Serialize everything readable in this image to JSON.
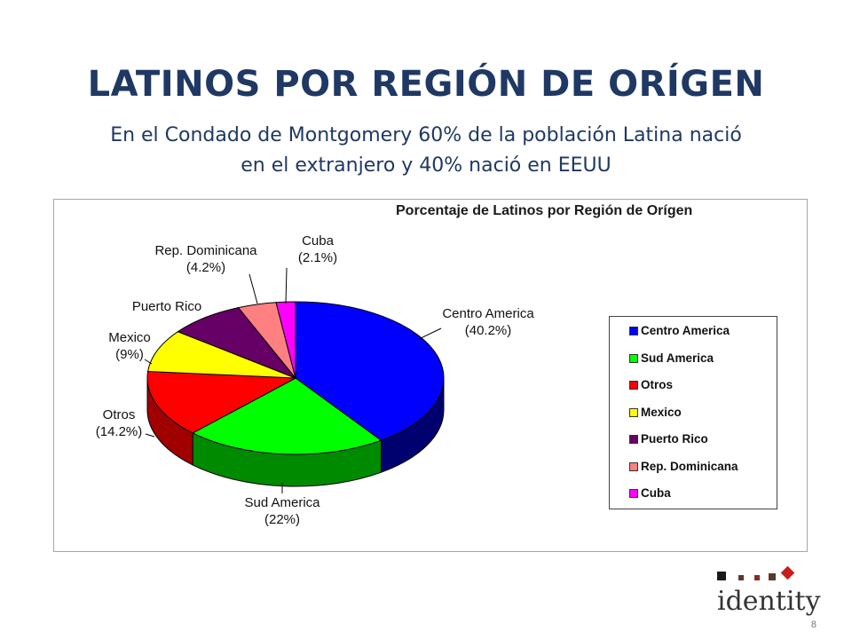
{
  "slide": {
    "title": "LATINOS POR REGIÓN DE ORÍGEN",
    "subtitle_line1": "En el Condado de Montgomery 60% de la población Latina nació",
    "subtitle_line2": "en el extranjero y 40% nació en EEUU"
  },
  "chart_data": {
    "type": "pie",
    "title": "Porcentaje de Latinos por Región de Orígen",
    "style": "3d",
    "legend_position": "right",
    "slices": [
      {
        "name": "Centro America",
        "label": "Centro America",
        "value_label": "(40.2%)",
        "value": 40.2,
        "color": "#0000ff",
        "side": "#00006e"
      },
      {
        "name": "Sud America",
        "label": "Sud America",
        "value_label": "(22%)",
        "value": 22.0,
        "color": "#00ff00",
        "side": "#008a00"
      },
      {
        "name": "Otros",
        "label": "Otros",
        "value_label": "(14.2%)",
        "value": 14.2,
        "color": "#ff0000",
        "side": "#a00000"
      },
      {
        "name": "Mexico",
        "label": "Mexico",
        "value_label": "(9%)",
        "value": 9.0,
        "color": "#ffff00",
        "side": "#9a9a00"
      },
      {
        "name": "Puerto Rico",
        "label": "Puerto Rico",
        "value_label": "",
        "value": 8.3,
        "color": "#660066",
        "side": "#330033"
      },
      {
        "name": "Rep. Dominicana",
        "label": "Rep. Dominicana",
        "value_label": "(4.2%)",
        "value": 4.2,
        "color": "#ff8080",
        "side": "#a04a4a"
      },
      {
        "name": "Cuba",
        "label": "Cuba",
        "value_label": "(2.1%)",
        "value": 2.1,
        "color": "#ff00ff",
        "side": "#8a008a"
      }
    ]
  },
  "logo": {
    "text": "identity",
    "colors": [
      "#1a1a1a",
      "#5a3a2a",
      "#8a2a2a",
      "#c81e1e"
    ]
  },
  "page_number": "8"
}
